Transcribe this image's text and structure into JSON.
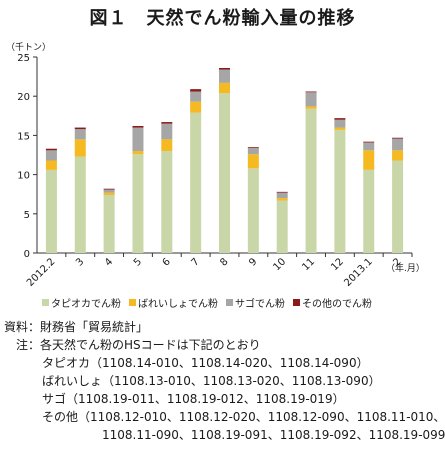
{
  "title": "図１　天然でん粉輸入量の推移",
  "chart_data": {
    "type": "bar",
    "stacked": true,
    "ylabel": "（千トン）",
    "xlabel": "（年.月）",
    "ylim": [
      0,
      25
    ],
    "yticks": [
      0,
      5,
      10,
      15,
      20,
      25
    ],
    "grid": false,
    "legend_position": "bottom",
    "categories": [
      "2012.2",
      "3",
      "4",
      "5",
      "6",
      "7",
      "8",
      "9",
      "10",
      "11",
      "12",
      "2013.1",
      "2"
    ],
    "series": [
      {
        "name": "タピオカでん粉",
        "color": "#c9d6a8",
        "values": [
          10.6,
          12.3,
          7.4,
          12.6,
          13.0,
          17.9,
          20.4,
          10.8,
          6.7,
          18.4,
          15.7,
          10.6,
          11.8
        ]
      },
      {
        "name": "ばれいしょでん粉",
        "color": "#f5b921",
        "values": [
          1.2,
          2.2,
          0.3,
          0.4,
          1.5,
          1.4,
          1.3,
          1.8,
          0.3,
          0.3,
          0.3,
          2.5,
          1.3
        ]
      },
      {
        "name": "サゴでん粉",
        "color": "#a6a6a6",
        "values": [
          1.3,
          1.3,
          0.4,
          3.0,
          2.0,
          1.3,
          1.7,
          0.8,
          0.7,
          1.8,
          1.0,
          1.0,
          1.5
        ]
      },
      {
        "name": "その他のでん粉",
        "color": "#8b1a1a",
        "values": [
          0.2,
          0.2,
          0.1,
          0.2,
          0.2,
          0.3,
          0.2,
          0.1,
          0.1,
          0.1,
          0.2,
          0.1,
          0.1
        ]
      }
    ]
  },
  "notes": {
    "source": "資料：財務省「貿易統計」",
    "note_head": "注：各天然でん粉のHSコードは下記のとおり",
    "tapioca": "タピオカ（1108.14-010、1108.14-020、1108.14-090）",
    "potato": "ばれいしょ（1108.13-010、1108.13-020、1108.13-090）",
    "sago": "サゴ（1108.19-011、1108.19-012、1108.19-019）",
    "other_1": "その他（1108.12-010、1108.12-020、1108.12-090、1108.11-010、",
    "other_2": "1108.11-090、1108.19-091、1108.19-092、1108.19-099）"
  }
}
